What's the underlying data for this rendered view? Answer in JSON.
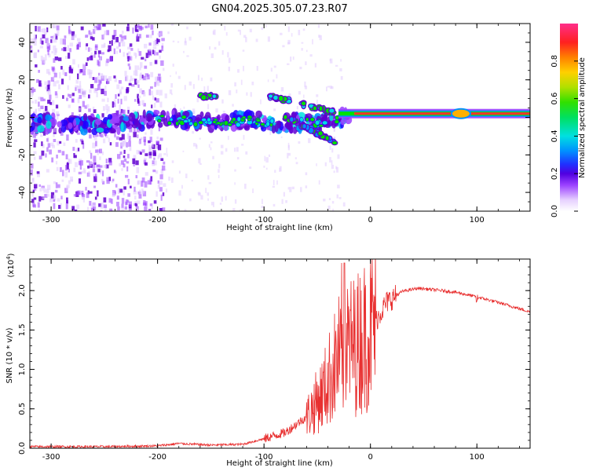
{
  "title": "GN04.2025.305.07.23.R07",
  "chart_data": [
    {
      "type": "heatmap",
      "name": "spectrogram",
      "xlabel": "Height of straight line (km)",
      "ylabel": "Frequency (Hz)",
      "xlim": [
        -320,
        150
      ],
      "ylim": [
        -50,
        50
      ],
      "xticks": [
        -300,
        -200,
        -100,
        0,
        100
      ],
      "yticks": [
        -40,
        -20,
        0,
        20,
        40
      ],
      "colorbar": {
        "label": "Normalized spectral amplitude",
        "range": [
          0,
          1
        ],
        "ticks": [
          "0.0",
          "0.2",
          "0.4",
          "0.6",
          "0.8"
        ],
        "colors": [
          "#ffffff",
          "#e0c8ff",
          "#9a40ff",
          "#6000d0",
          "#2000ff",
          "#0090ff",
          "#00e0e0",
          "#00e000",
          "#c0e000",
          "#ffb000",
          "#ff3030",
          "#ff3090"
        ]
      },
      "features": {
        "noise_region_km": [
          -320,
          -195
        ],
        "main_ridge": [
          {
            "x": -320,
            "y": -3
          },
          {
            "x": -250,
            "y": -4
          },
          {
            "x": -200,
            "y": -1
          },
          {
            "x": -150,
            "y": -2
          },
          {
            "x": -110,
            "y": -2
          },
          {
            "x": -80,
            "y": -3
          },
          {
            "x": -50,
            "y": -3
          },
          {
            "x": -30,
            "y": -1
          },
          {
            "x": -10,
            "y": 1
          },
          {
            "x": 20,
            "y": 2
          },
          {
            "x": 100,
            "y": 2
          },
          {
            "x": 150,
            "y": 2
          }
        ],
        "upper_branch": [
          {
            "x": -160,
            "y": 11
          },
          {
            "x": -145,
            "y": 11
          },
          {
            "x": -95,
            "y": 11
          },
          {
            "x": -70,
            "y": 8
          },
          {
            "x": -50,
            "y": 5
          },
          {
            "x": -35,
            "y": 3
          }
        ],
        "lower_branch": [
          {
            "x": -80,
            "y": 0
          },
          {
            "x": -60,
            "y": -5
          },
          {
            "x": -45,
            "y": -10
          },
          {
            "x": -35,
            "y": -13
          }
        ],
        "strong_line_km": [
          -30,
          150
        ],
        "strong_line_hz": 2
      }
    },
    {
      "type": "line",
      "name": "snr",
      "xlabel": "Height of straight line (km)",
      "ylabel": "SNR (10 * v/v)",
      "scale_label": "(x10",
      "scale_exp": "4",
      "scale_close": ")",
      "xlim": [
        -320,
        150
      ],
      "ylim": [
        0,
        2.4
      ],
      "xticks": [
        -300,
        -200,
        -100,
        0,
        100
      ],
      "yticks": [
        "0.0",
        "0.5",
        "1.0",
        "1.5",
        "2.0"
      ],
      "color": "#e83030",
      "envelope": [
        {
          "x": -320,
          "y": 0.02
        },
        {
          "x": -250,
          "y": 0.02
        },
        {
          "x": -200,
          "y": 0.03
        },
        {
          "x": -180,
          "y": 0.06
        },
        {
          "x": -150,
          "y": 0.04
        },
        {
          "x": -120,
          "y": 0.05
        },
        {
          "x": -100,
          "y": 0.12
        },
        {
          "x": -80,
          "y": 0.2
        },
        {
          "x": -60,
          "y": 0.4
        },
        {
          "x": -45,
          "y": 0.7
        },
        {
          "x": -35,
          "y": 1.0
        },
        {
          "x": -25,
          "y": 1.3
        },
        {
          "x": -15,
          "y": 1.3
        },
        {
          "x": 0,
          "y": 1.5
        },
        {
          "x": 15,
          "y": 1.85
        },
        {
          "x": 30,
          "y": 1.99
        },
        {
          "x": 45,
          "y": 2.03
        },
        {
          "x": 60,
          "y": 2.01
        },
        {
          "x": 80,
          "y": 1.98
        },
        {
          "x": 100,
          "y": 1.92
        },
        {
          "x": 120,
          "y": 1.85
        },
        {
          "x": 150,
          "y": 1.73
        }
      ]
    }
  ]
}
